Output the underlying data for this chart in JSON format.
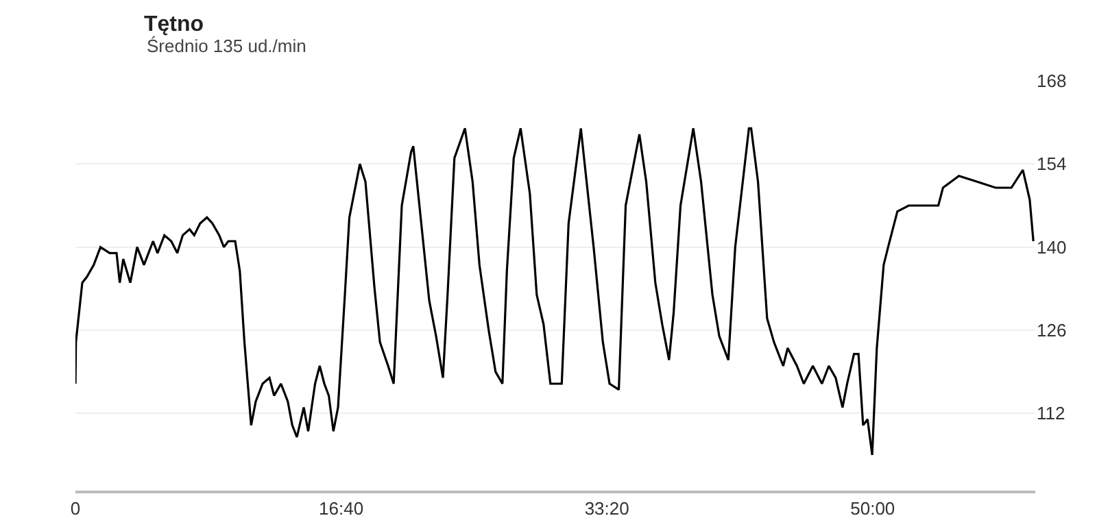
{
  "chart_data": {
    "type": "line",
    "title": "Tętno",
    "subtitle": "Średnio 135 ud./min",
    "x": [
      0,
      0.03,
      0.43,
      0.72,
      1.15,
      1.57,
      2.15,
      2.58,
      2.78,
      3.0,
      3.44,
      3.87,
      4.3,
      4.87,
      5.15,
      5.58,
      6.01,
      6.39,
      6.73,
      7.16,
      7.45,
      7.82,
      8.25,
      8.59,
      9.02,
      9.31,
      9.59,
      10.02,
      10.31,
      10.6,
      11.02,
      11.31,
      11.74,
      12.17,
      12.46,
      12.89,
      13.32,
      13.6,
      13.89,
      14.32,
      14.6,
      15.03,
      15.32,
      15.61,
      15.89,
      16.18,
      16.47,
      16.9,
      17.18,
      17.84,
      18.19,
      18.76,
      19.1,
      19.61,
      19.96,
      20.47,
      21.05,
      21.19,
      22.19,
      22.62,
      23.05,
      23.34,
      23.77,
      24.43,
      24.91,
      25.34,
      25.92,
      26.35,
      26.78,
      27.06,
      27.49,
      27.92,
      28.5,
      28.93,
      29.36,
      29.79,
      30.5,
      30.93,
      31.7,
      32.5,
      33.08,
      33.5,
      34.08,
      34.51,
      35.37,
      35.8,
      36.37,
      36.8,
      37.23,
      37.52,
      37.95,
      38.75,
      39.24,
      39.95,
      40.38,
      40.95,
      41.38,
      42.24,
      42.38,
      42.81,
      43.38,
      43.81,
      44.39,
      44.67,
      45.25,
      45.68,
      46.25,
      46.82,
      47.25,
      47.68,
      48.11,
      48.4,
      48.83,
      49.11,
      49.4,
      49.68,
      49.97,
      50.26,
      50.69,
      50.97,
      51.55,
      52.26,
      53.12,
      54.12,
      54.41,
      55.41,
      56.56,
      57.71,
      58.7,
      59.42,
      59.85,
      60.08
    ],
    "series": [
      {
        "color": "#000000",
        "values": [
          117,
          124,
          134,
          135,
          137,
          140,
          139,
          139,
          134,
          138,
          134,
          140,
          137,
          141,
          139,
          142,
          141,
          139,
          142,
          143,
          142,
          144,
          145,
          144,
          142,
          140,
          141,
          141,
          136,
          124,
          110,
          114,
          117,
          118,
          115,
          117,
          114,
          110,
          108,
          113,
          109,
          117,
          120,
          117,
          115,
          109,
          113,
          132,
          145,
          154,
          151,
          133,
          124,
          120,
          117,
          147,
          156,
          157,
          131,
          125,
          118,
          132,
          155,
          160,
          151,
          137,
          126,
          119,
          117,
          136,
          155,
          160,
          149,
          132,
          127,
          117,
          117,
          144,
          160,
          140,
          124,
          117,
          116,
          147,
          159,
          151,
          134,
          127,
          121,
          129,
          147,
          160,
          151,
          132,
          125,
          121,
          140,
          160,
          160,
          151,
          128,
          124,
          120,
          123,
          120,
          117,
          120,
          117,
          120,
          118,
          113,
          117,
          122,
          122,
          110,
          111,
          105,
          123,
          137,
          140,
          146,
          147,
          147,
          147,
          150,
          152,
          151,
          150,
          150,
          153,
          148,
          141
        ]
      }
    ],
    "xlim": [
      0,
      60.2
    ],
    "ylim": [
      99,
      168
    ],
    "xticks": [
      0,
      {
        "value": 16.667,
        "label": "16:40"
      },
      {
        "value": 33.333,
        "label": "33:20"
      },
      {
        "value": 50,
        "label": "50:00"
      }
    ],
    "yticks": [
      112,
      126,
      140,
      154,
      168
    ],
    "grid": "y",
    "marker": "none",
    "line_style": "solid"
  }
}
